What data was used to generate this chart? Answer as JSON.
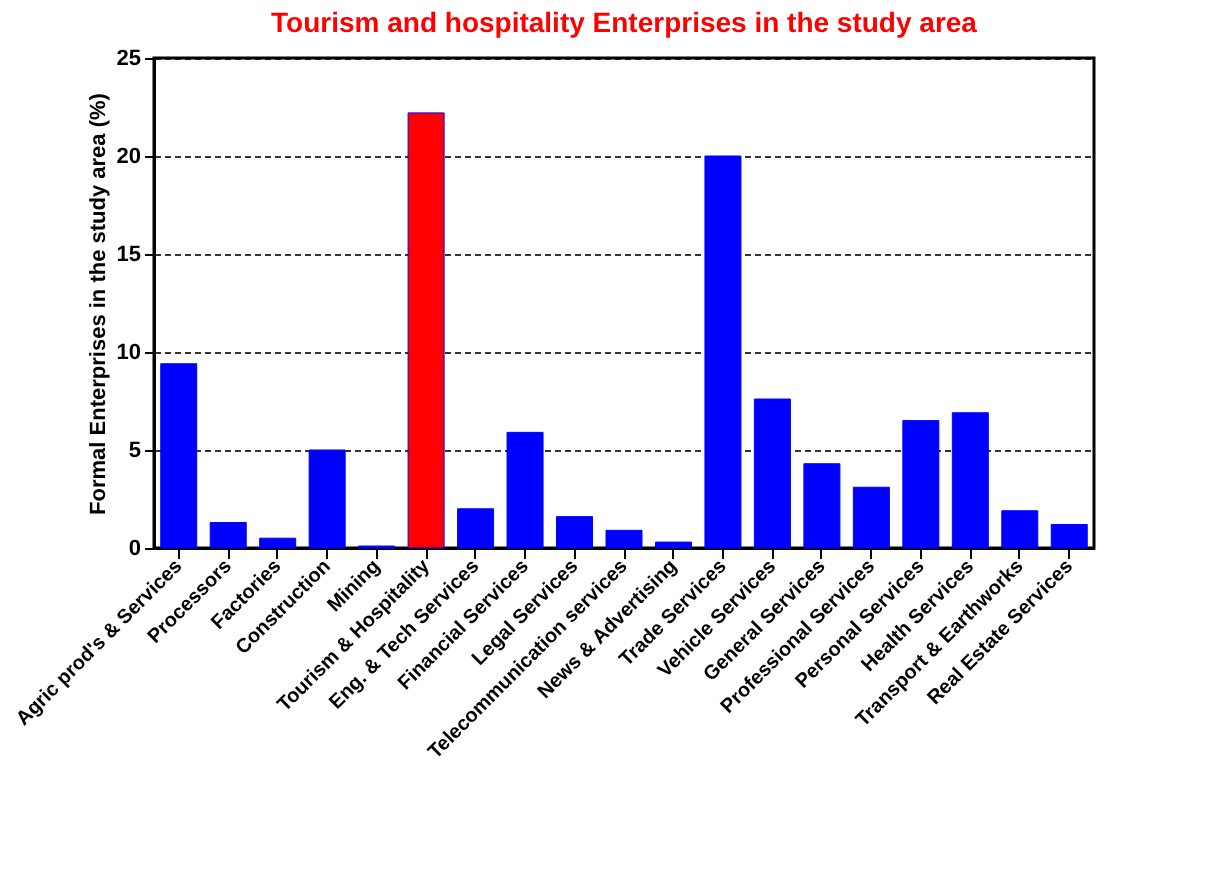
{
  "chart_data": {
    "type": "bar",
    "title": "Tourism and hospitality Enterprises in the study area",
    "ylabel": "Formal  Enterprises  in the study  area (%)",
    "categories": [
      "Agric prod's & Services",
      "Processors",
      "Factories",
      "Construction",
      "Mining",
      "Tourism & Hospitality",
      "Eng. & Tech Services",
      "Financial Services",
      "Legal Services",
      "Telecommunication services",
      "News & Advertising",
      "Trade Services",
      "Vehicle Services",
      "General Services",
      "Professional Services",
      "Personal Services",
      "Health Services",
      "Transport & Earthworks",
      "Real Estate Services"
    ],
    "values": [
      9.4,
      1.3,
      0.5,
      5.0,
      0.1,
      22.2,
      2.0,
      5.9,
      1.6,
      0.9,
      0.3,
      20.0,
      7.6,
      4.3,
      3.1,
      6.5,
      6.9,
      1.9,
      1.2
    ],
    "colors": [
      "#0000ff",
      "#0000ff",
      "#0000ff",
      "#0000ff",
      "#0000ff",
      "#ff0000",
      "#0000ff",
      "#0000ff",
      "#0000ff",
      "#0000ff",
      "#0000ff",
      "#0000ff",
      "#0000ff",
      "#0000ff",
      "#0000ff",
      "#0000ff",
      "#0000ff",
      "#0000ff",
      "#0000ff"
    ],
    "ylim": [
      0,
      25
    ],
    "yticks": [
      0,
      5,
      10,
      15,
      20,
      25
    ],
    "grid": "y"
  }
}
